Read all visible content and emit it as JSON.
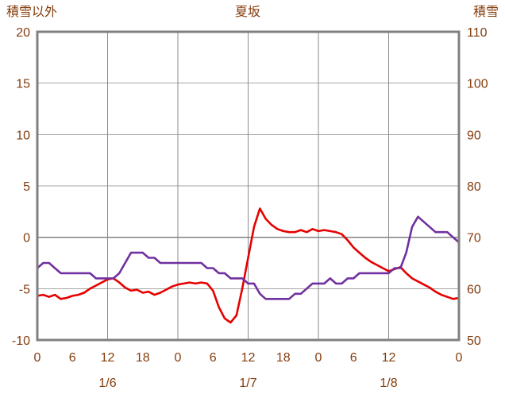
{
  "chart_data": {
    "type": "line",
    "title": "夏坂",
    "left_axis": {
      "label": "積雪以外",
      "min": -10,
      "max": 20,
      "ticks": [
        20,
        15,
        10,
        5,
        0,
        -5,
        -10
      ],
      "gridline_values": [
        15,
        10,
        5,
        0,
        -5
      ],
      "zero_value": 0
    },
    "right_axis": {
      "label": "積雪",
      "min": 50,
      "max": 110,
      "ticks": [
        110,
        100,
        90,
        80,
        70,
        60,
        50
      ]
    },
    "x_axis": {
      "unit": "hour",
      "range_hours": [
        0,
        72
      ],
      "gridline_hours": [
        12,
        24,
        36,
        48,
        60
      ],
      "tick_labels": [
        {
          "hour": 0,
          "label": "0"
        },
        {
          "hour": 6,
          "label": "6"
        },
        {
          "hour": 12,
          "label": "12"
        },
        {
          "hour": 18,
          "label": "18"
        },
        {
          "hour": 24,
          "label": "0"
        },
        {
          "hour": 30,
          "label": "6"
        },
        {
          "hour": 36,
          "label": "12"
        },
        {
          "hour": 42,
          "label": "18"
        },
        {
          "hour": 48,
          "label": "0"
        },
        {
          "hour": 54,
          "label": "6"
        },
        {
          "hour": 60,
          "label": "12"
        },
        {
          "hour": 72,
          "label": "0"
        }
      ],
      "day_labels": [
        {
          "hour": 12,
          "label": "1/6"
        },
        {
          "hour": 36,
          "label": "1/7"
        },
        {
          "hour": 60,
          "label": "1/8"
        }
      ]
    },
    "series": [
      {
        "id": "red-line",
        "axis": "left",
        "color": "#e60000",
        "x_start_hour": 0,
        "x_step_hours": 1,
        "values": [
          -5.7,
          -5.6,
          -5.8,
          -5.6,
          -6.0,
          -5.9,
          -5.7,
          -5.6,
          -5.4,
          -5.0,
          -4.7,
          -4.4,
          -4.1,
          -4.0,
          -4.4,
          -4.9,
          -5.2,
          -5.1,
          -5.4,
          -5.3,
          -5.6,
          -5.4,
          -5.1,
          -4.8,
          -4.6,
          -4.5,
          -4.4,
          -4.5,
          -4.4,
          -4.5,
          -5.2,
          -6.8,
          -7.9,
          -8.3,
          -7.6,
          -5.0,
          -2.0,
          1.0,
          2.8,
          1.8,
          1.2,
          0.8,
          0.6,
          0.5,
          0.5,
          0.7,
          0.5,
          0.8,
          0.6,
          0.7,
          0.6,
          0.5,
          0.3,
          -0.3,
          -1.0,
          -1.5,
          -2.0,
          -2.4,
          -2.7,
          -3.0,
          -3.3,
          -3.1,
          -2.9,
          -3.5,
          -4.0,
          -4.3,
          -4.6,
          -4.9,
          -5.3,
          -5.6,
          -5.8,
          -6.0,
          -5.9
        ]
      },
      {
        "id": "purple-line",
        "axis": "right",
        "color": "#7030a0",
        "x_start_hour": 0,
        "x_step_hours": 1,
        "values": [
          64,
          65,
          65,
          64,
          63,
          63,
          63,
          63,
          63,
          63,
          62,
          62,
          62,
          62,
          63,
          65,
          67,
          67,
          67,
          66,
          66,
          65,
          65,
          65,
          65,
          65,
          65,
          65,
          65,
          64,
          64,
          63,
          63,
          62,
          62,
          62,
          61,
          61,
          59,
          58,
          58,
          58,
          58,
          58,
          59,
          59,
          60,
          61,
          61,
          61,
          62,
          61,
          61,
          62,
          62,
          63,
          63,
          63,
          63,
          63,
          63,
          64,
          64,
          67,
          72,
          74,
          73,
          72,
          71,
          71,
          71,
          70,
          69
        ]
      }
    ],
    "colors": {
      "text": "#843c0c",
      "gridline": "#a6a6a6",
      "gridline_vertical": "#8c8c8c",
      "zero_line": "#808080",
      "border": "#808080",
      "background": "#ffffff"
    },
    "legend": "none",
    "grid": "on"
  }
}
